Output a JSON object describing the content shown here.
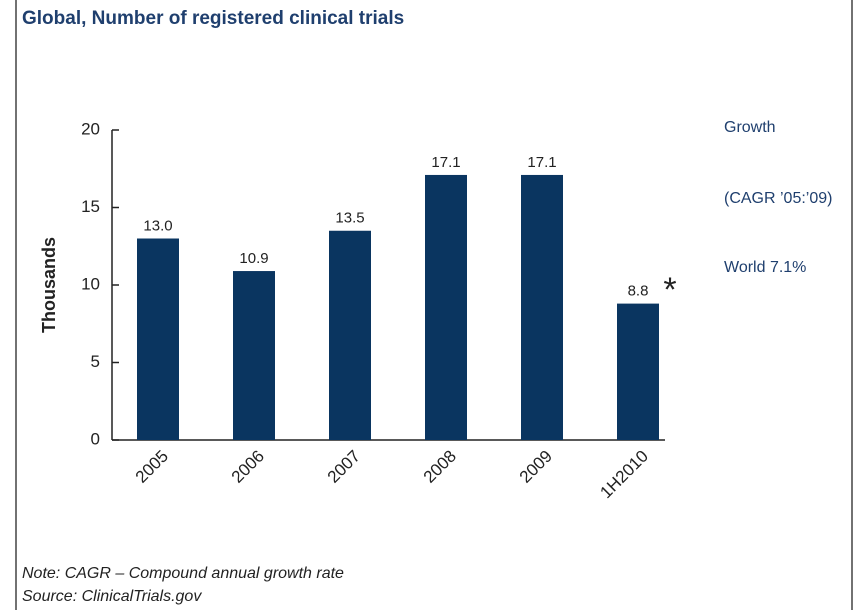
{
  "chart_data": {
    "type": "bar",
    "title": "Global, Number of registered clinical trials",
    "y_label": "Thousands",
    "categories": [
      "2005",
      "2006",
      "2007",
      "2008",
      "2009",
      "1H2010"
    ],
    "values": [
      13.0,
      10.9,
      13.5,
      17.1,
      17.1,
      8.8
    ],
    "value_labels": [
      "13.0",
      "10.9",
      "13.5",
      "17.1",
      "17.1",
      "8.8"
    ],
    "color": "#0a3560",
    "ylim": [
      0,
      20
    ],
    "yticks": [
      0,
      5,
      10,
      15,
      20
    ],
    "annotation": "*",
    "side_notes": [
      "Growth",
      "(CAGR ’05:’09)",
      "World 7.1%"
    ],
    "notes": [
      "Note: CAGR – Compound annual growth rate",
      "Source: ClinicalTrials.gov"
    ]
  }
}
